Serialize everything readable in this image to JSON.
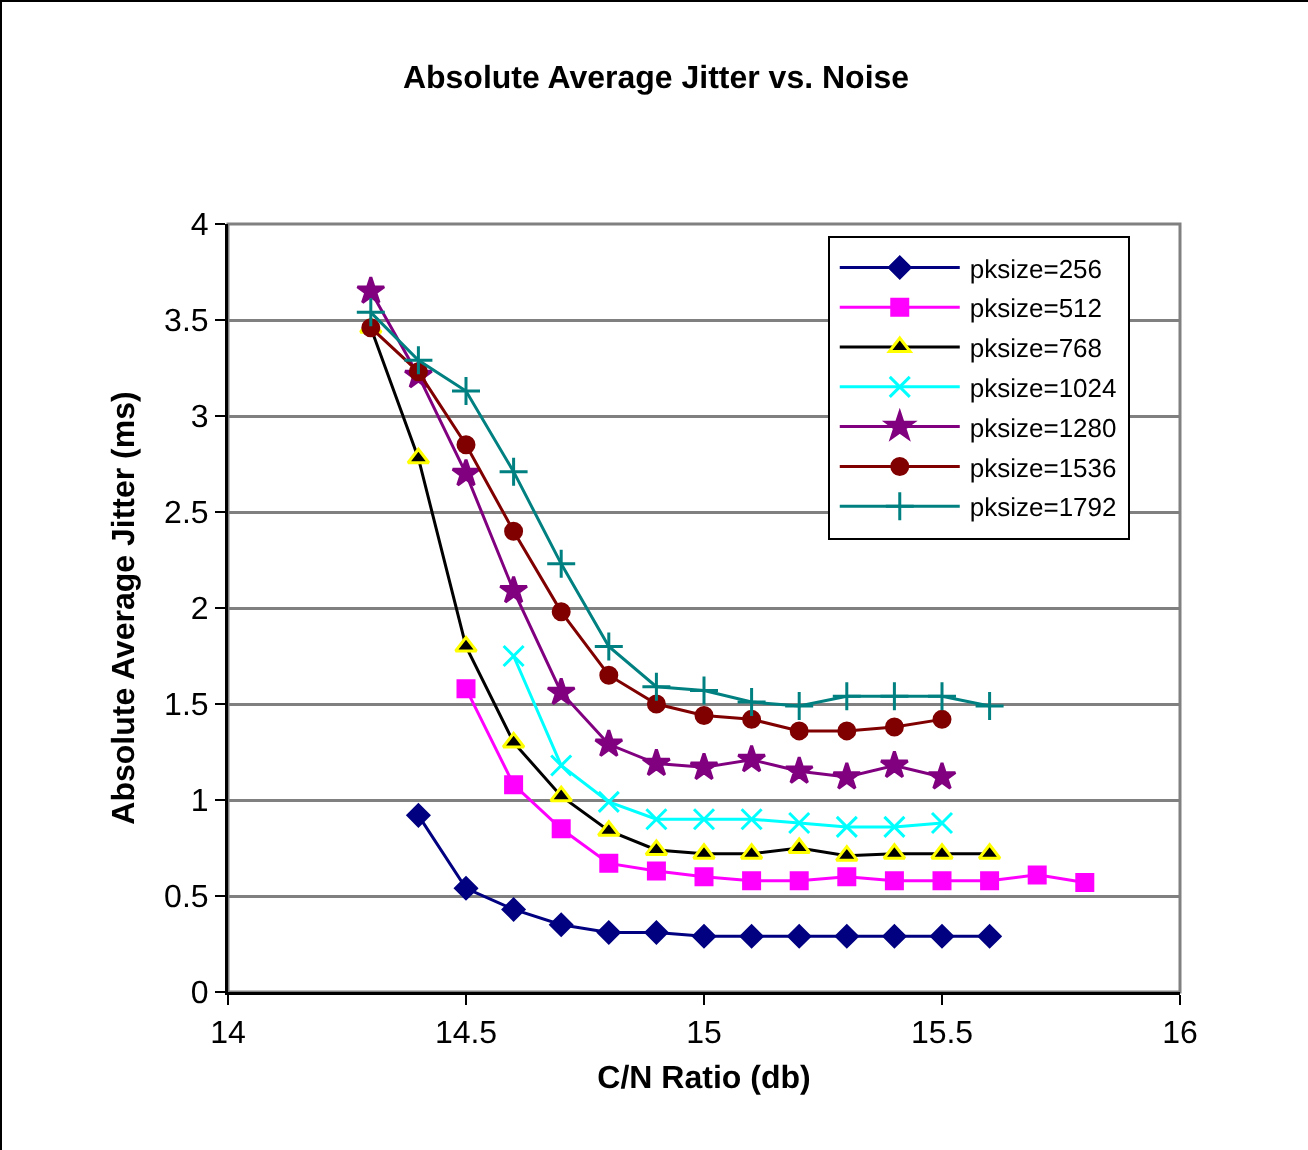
{
  "chart_data": {
    "type": "line",
    "title": "Absolute Average Jitter vs. Noise",
    "xlabel": "C/N Ratio (db)",
    "ylabel": "Absolute Average Jitter (ms)",
    "xlim": [
      14,
      16
    ],
    "xticks": [
      14,
      14.5,
      15,
      15.5,
      16
    ],
    "ylim": [
      0,
      4
    ],
    "yticks": [
      0,
      0.5,
      1,
      1.5,
      2,
      2.5,
      3,
      3.5,
      4
    ],
    "grid": "y",
    "legend": "top right",
    "series": [
      {
        "name": "pksize=256",
        "color": "#000080",
        "marker": "diamond",
        "x": [
          14.4,
          14.5,
          14.6,
          14.7,
          14.8,
          14.9,
          15.0,
          15.1,
          15.2,
          15.3,
          15.4,
          15.5,
          15.6
        ],
        "values": [
          0.92,
          0.54,
          0.43,
          0.35,
          0.31,
          0.31,
          0.29,
          0.29,
          0.29,
          0.29,
          0.29,
          0.29,
          0.29
        ]
      },
      {
        "name": "pksize=512",
        "color": "#ff00ff",
        "marker": "square",
        "x": [
          14.5,
          14.6,
          14.7,
          14.8,
          14.9,
          15.0,
          15.1,
          15.2,
          15.3,
          15.4,
          15.5,
          15.6,
          15.7,
          15.8
        ],
        "values": [
          1.58,
          1.08,
          0.85,
          0.67,
          0.63,
          0.6,
          0.58,
          0.58,
          0.6,
          0.58,
          0.58,
          0.58,
          0.61,
          0.57
        ]
      },
      {
        "name": "pksize=768",
        "color": "#000000",
        "marker": "triangle",
        "x": [
          14.3,
          14.4,
          14.5,
          14.6,
          14.7,
          14.8,
          14.9,
          15.0,
          15.1,
          15.2,
          15.3,
          15.4,
          15.5,
          15.6
        ],
        "values": [
          3.46,
          2.78,
          1.8,
          1.3,
          1.02,
          0.84,
          0.74,
          0.72,
          0.72,
          0.75,
          0.71,
          0.72,
          0.72,
          0.72
        ]
      },
      {
        "name": "pksize=1024",
        "color": "#00ffff",
        "marker": "x",
        "x": [
          14.6,
          14.7,
          14.8,
          14.9,
          15.0,
          15.1,
          15.2,
          15.3,
          15.4,
          15.5
        ],
        "values": [
          1.75,
          1.18,
          0.99,
          0.9,
          0.9,
          0.9,
          0.88,
          0.86,
          0.86,
          0.88
        ]
      },
      {
        "name": "pksize=1280",
        "color": "#800080",
        "marker": "star",
        "x": [
          14.3,
          14.4,
          14.5,
          14.6,
          14.7,
          14.8,
          14.9,
          15.0,
          15.1,
          15.2,
          15.3,
          15.4,
          15.5
        ],
        "values": [
          3.65,
          3.21,
          2.7,
          2.09,
          1.56,
          1.29,
          1.19,
          1.17,
          1.21,
          1.15,
          1.12,
          1.18,
          1.12
        ]
      },
      {
        "name": "pksize=1536",
        "color": "#800000",
        "marker": "circle",
        "x": [
          14.3,
          14.4,
          14.5,
          14.6,
          14.7,
          14.8,
          14.9,
          15.0,
          15.1,
          15.2,
          15.3,
          15.4,
          15.5
        ],
        "values": [
          3.46,
          3.23,
          2.85,
          2.4,
          1.98,
          1.65,
          1.5,
          1.44,
          1.42,
          1.36,
          1.36,
          1.38,
          1.42
        ]
      },
      {
        "name": "pksize=1792",
        "color": "#008080",
        "marker": "cross",
        "x": [
          14.3,
          14.4,
          14.5,
          14.6,
          14.7,
          14.8,
          14.9,
          15.0,
          15.1,
          15.2,
          15.3,
          15.4,
          15.5,
          15.6
        ],
        "values": [
          3.54,
          3.29,
          3.13,
          2.71,
          2.23,
          1.8,
          1.59,
          1.57,
          1.51,
          1.49,
          1.54,
          1.54,
          1.54,
          1.49
        ]
      }
    ]
  }
}
